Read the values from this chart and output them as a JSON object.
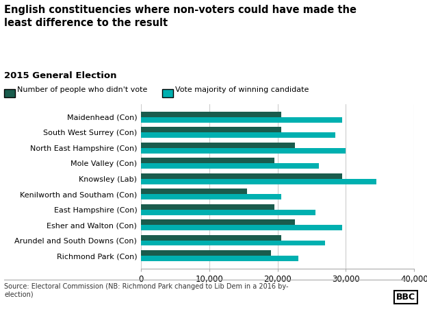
{
  "title": "English constituencies where non-voters could have made the\nleast difference to the result",
  "subtitle": "2015 General Election",
  "categories": [
    "Maidenhead (Con)",
    "South West Surrey (Con)",
    "North East Hampshire (Con)",
    "Mole Valley (Con)",
    "Knowsley (Lab)",
    "Kenilworth and Southam (Con)",
    "East Hampshire (Con)",
    "Esher and Walton (Con)",
    "Arundel and South Downs (Con)",
    "Richmond Park (Con)"
  ],
  "didnt_vote": [
    20500,
    20500,
    22500,
    19500,
    29500,
    15500,
    19500,
    22500,
    20500,
    19000
  ],
  "majority": [
    29500,
    28500,
    30000,
    26000,
    34500,
    20500,
    25500,
    29500,
    27000,
    23000
  ],
  "color_didnt_vote": "#1a5c4d",
  "color_majority": "#00b0b0",
  "source_text": "Source: Electoral Commission (NB: Richmond Park changed to Lib Dem in a 2016 by-\nelection)",
  "xlim": [
    0,
    40000
  ],
  "xticks": [
    0,
    10000,
    20000,
    30000,
    40000
  ],
  "xtick_labels": [
    "0",
    "10,000",
    "20,000",
    "30,000",
    "40,000"
  ]
}
